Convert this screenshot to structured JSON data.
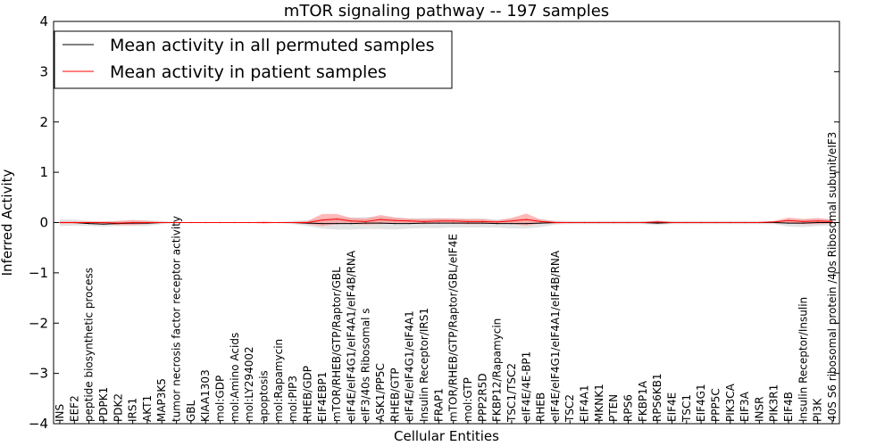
{
  "chart_data": {
    "type": "line",
    "title": "mTOR signaling pathway -- 197 samples",
    "xlabel": "Cellular Entities",
    "ylabel": "Inferred Activity",
    "ylim": [
      -4,
      4
    ],
    "yticks": [
      -4,
      -3,
      -2,
      -1,
      0,
      1,
      2,
      3,
      4
    ],
    "ytick_labels": [
      "−4",
      "−3",
      "−2",
      "−1",
      "0",
      "1",
      "2",
      "3",
      "4"
    ],
    "grid": false,
    "legend_position": "top-left",
    "categories": [
      "INS",
      "EEF2",
      "peptide biosynthetic process",
      "PDPK1",
      "PDK2",
      "IRS1",
      "AKT1",
      "MAP3K5",
      "tumor necrosis factor receptor activity",
      "GBL",
      "KIAA1303",
      "mol:GDP",
      "mol:Amino Acids",
      "mol:LY294002",
      "apoptosis",
      "mol:Rapamycin",
      "mol:PIP3",
      "RHEB/GDP",
      "EIF4EBP1",
      "mTOR/RHEB/GTP/Raptor/GBL",
      "eIF4E/eIF4G1/eIF4A1/eIF4B/RNA",
      "eIF3/40s Ribosomal s",
      "ASK1/PP5C",
      "RHEB/GTP",
      "eIF4E/eIF4G1/eIF4A1",
      "Insulin Receptor/IRS1",
      "FRAP1",
      "mTOR/RHEB/GTP/Raptor/GBL/eIF4E",
      "mol:GTP",
      "PPP2R5D",
      "FKBP12/Rapamycin",
      "TSC1/TSC2",
      "eIF4E/4E-BP1",
      "RHEB",
      "eIF4E/eIF4G1/eIF4A1/eIF4B/RNA",
      "TSC2",
      "EIF4A1",
      "MKNK1",
      "PTEN",
      "RPS6",
      "FKBP1A",
      "RPS6KB1",
      "EIF4E",
      "TSC1",
      "EIF4G1",
      "PPP5C",
      "PIK3CA",
      "EIF3A",
      "INSR",
      "PIK3R1",
      "EIF4B",
      "Insulin Receptor/Insulin",
      "PI3K",
      "40S S6 ribosomal protein /40s Ribosomal subunit/eIF3"
    ],
    "series": [
      {
        "name": "Mean activity in all permuted samples",
        "color": "#000000",
        "values": [
          0,
          0,
          -0.02,
          -0.03,
          -0.02,
          -0.01,
          -0.01,
          0,
          0,
          0,
          0,
          0,
          0,
          0,
          0,
          0,
          0,
          -0.01,
          -0.02,
          -0.02,
          -0.02,
          -0.01,
          -0.01,
          -0.02,
          -0.02,
          -0.01,
          -0.01,
          -0.01,
          -0.01,
          -0.01,
          -0.02,
          -0.02,
          -0.02,
          -0.01,
          0,
          0,
          0,
          0,
          0,
          0,
          0,
          -0.01,
          0,
          0,
          0,
          0,
          0,
          0,
          0,
          0,
          -0.01,
          -0.01,
          0,
          0
        ],
        "band": [
          0.07,
          0.06,
          0.05,
          0.05,
          0.05,
          0.06,
          0.06,
          0.03,
          0.01,
          0.01,
          0.01,
          0.01,
          0.01,
          0.01,
          0.01,
          0.01,
          0.03,
          0.06,
          0.1,
          0.12,
          0.12,
          0.12,
          0.12,
          0.12,
          0.1,
          0.1,
          0.1,
          0.09,
          0.09,
          0.09,
          0.08,
          0.1,
          0.1,
          0.08,
          0.04,
          0.03,
          0.03,
          0.03,
          0.03,
          0.03,
          0.03,
          0.04,
          0.03,
          0.03,
          0.03,
          0.03,
          0.03,
          0.03,
          0.03,
          0.03,
          0.07,
          0.08,
          0.07,
          0.06
        ]
      },
      {
        "name": "Mean activity in patient samples",
        "color": "#ff0000",
        "values": [
          0,
          0,
          0,
          0,
          -0.01,
          0,
          0,
          0,
          0,
          0,
          0,
          0,
          0,
          0,
          0,
          0,
          0,
          0,
          0.05,
          0.07,
          0.03,
          0.02,
          0.06,
          0.04,
          0.03,
          0.02,
          0.03,
          0.03,
          0.02,
          0.02,
          0.01,
          0.03,
          0.06,
          0.02,
          0,
          0,
          0,
          0,
          0,
          0,
          0,
          0.01,
          0,
          0,
          0,
          0,
          0,
          0,
          0,
          0.01,
          0.04,
          0.02,
          0.03,
          0.02
        ],
        "band": [
          0.02,
          0.02,
          0.02,
          0.02,
          0.04,
          0.05,
          0.03,
          0.01,
          0.005,
          0.005,
          0.005,
          0.005,
          0.005,
          0.005,
          0.02,
          0.005,
          0.01,
          0.03,
          0.12,
          0.1,
          0.06,
          0.06,
          0.09,
          0.06,
          0.05,
          0.05,
          0.05,
          0.05,
          0.05,
          0.05,
          0.03,
          0.06,
          0.12,
          0.04,
          0.02,
          0.01,
          0.01,
          0.01,
          0.01,
          0.01,
          0.01,
          0.03,
          0.01,
          0.01,
          0.01,
          0.01,
          0.01,
          0.01,
          0.01,
          0.02,
          0.06,
          0.05,
          0.06,
          0.04
        ]
      }
    ]
  },
  "colors": {
    "permuted_band": "#cccccc",
    "patient_band": "#ff8080"
  }
}
